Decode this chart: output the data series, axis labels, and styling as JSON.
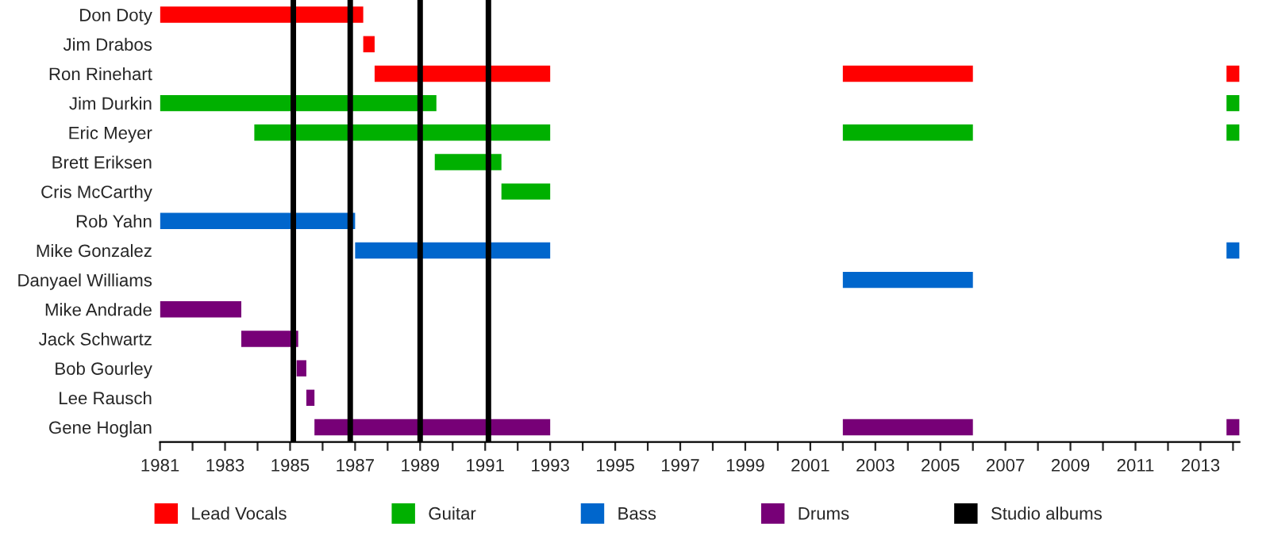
{
  "chart_data": {
    "type": "bar",
    "orientation": "horizontal",
    "categories": [
      "Don Doty",
      "Jim Drabos",
      "Ron Rinehart",
      "Jim Durkin",
      "Eric Meyer",
      "Brett Eriksen",
      "Cris McCarthy",
      "Rob Yahn",
      "Mike Gonzalez",
      "Danyael Williams",
      "Mike Andrade",
      "Jack Schwartz",
      "Bob Gourley",
      "Lee Rausch",
      "Gene Hoglan"
    ],
    "series": [
      {
        "name": "Lead Vocals",
        "color": "#ff0000",
        "base": [
          1981,
          1987.25,
          1987.6,
          null,
          null,
          null,
          null,
          null,
          null,
          null,
          null,
          null,
          null,
          null,
          null
        ],
        "values": [
          6.25,
          0.35,
          5.4,
          null,
          null,
          null,
          null,
          null,
          null,
          null,
          null,
          null,
          null,
          null,
          null
        ]
      },
      {
        "color": "#ff0000",
        "base": [
          null,
          null,
          2002,
          null,
          null,
          null,
          null,
          null,
          null,
          null,
          null,
          null,
          null,
          null,
          null
        ],
        "values": [
          null,
          null,
          4,
          null,
          null,
          null,
          null,
          null,
          null,
          null,
          null,
          null,
          null,
          null,
          null
        ]
      },
      {
        "color": "#ff0000",
        "base": [
          null,
          null,
          2013.8,
          null,
          null,
          null,
          null,
          null,
          null,
          null,
          null,
          null,
          null,
          null,
          null
        ],
        "values": [
          null,
          null,
          0.4,
          null,
          null,
          null,
          null,
          null,
          null,
          null,
          null,
          null,
          null,
          null,
          null
        ]
      },
      {
        "name": "Guitar",
        "color": "#00b000",
        "base": [
          null,
          null,
          null,
          1981,
          1983.9,
          1989.45,
          1991.5,
          null,
          null,
          null,
          null,
          null,
          null,
          null,
          null
        ],
        "values": [
          null,
          null,
          null,
          8.5,
          9.1,
          2.05,
          1.5,
          null,
          null,
          null,
          null,
          null,
          null,
          null,
          null
        ]
      },
      {
        "color": "#00b000",
        "base": [
          null,
          null,
          null,
          null,
          2002,
          null,
          null,
          null,
          null,
          null,
          null,
          null,
          null,
          null,
          null
        ],
        "values": [
          null,
          null,
          null,
          null,
          4,
          null,
          null,
          null,
          null,
          null,
          null,
          null,
          null,
          null,
          null
        ]
      },
      {
        "color": "#00b000",
        "base": [
          null,
          null,
          null,
          2013.8,
          2013.8,
          null,
          null,
          null,
          null,
          null,
          null,
          null,
          null,
          null,
          null
        ],
        "values": [
          null,
          null,
          null,
          0.4,
          0.4,
          null,
          null,
          null,
          null,
          null,
          null,
          null,
          null,
          null,
          null
        ]
      },
      {
        "name": "Bass",
        "color": "#0066cc",
        "base": [
          null,
          null,
          null,
          null,
          null,
          null,
          null,
          1981,
          1987,
          2002,
          null,
          null,
          null,
          null,
          null
        ],
        "values": [
          null,
          null,
          null,
          null,
          null,
          null,
          null,
          6,
          6,
          4,
          null,
          null,
          null,
          null,
          null
        ]
      },
      {
        "color": "#0066cc",
        "base": [
          null,
          null,
          null,
          null,
          null,
          null,
          null,
          null,
          2013.8,
          null,
          null,
          null,
          null,
          null,
          null
        ],
        "values": [
          null,
          null,
          null,
          null,
          null,
          null,
          null,
          null,
          0.4,
          null,
          null,
          null,
          null,
          null,
          null
        ]
      },
      {
        "name": "Drums",
        "color": "#770077",
        "base": [
          null,
          null,
          null,
          null,
          null,
          null,
          null,
          null,
          null,
          null,
          1981,
          1983.5,
          1985.2,
          1985.5,
          1985.75
        ],
        "values": [
          null,
          null,
          null,
          null,
          null,
          null,
          null,
          null,
          null,
          null,
          2.5,
          1.75,
          0.3,
          0.25,
          7.25
        ]
      },
      {
        "color": "#770077",
        "base": [
          null,
          null,
          null,
          null,
          null,
          null,
          null,
          null,
          null,
          null,
          null,
          null,
          null,
          null,
          2002
        ],
        "values": [
          null,
          null,
          null,
          null,
          null,
          null,
          null,
          null,
          null,
          null,
          null,
          null,
          null,
          null,
          4
        ]
      },
      {
        "color": "#770077",
        "base": [
          null,
          null,
          null,
          null,
          null,
          null,
          null,
          null,
          null,
          null,
          null,
          null,
          null,
          null,
          2013.8
        ],
        "values": [
          null,
          null,
          null,
          null,
          null,
          null,
          null,
          null,
          null,
          null,
          null,
          null,
          null,
          null,
          0.4
        ]
      }
    ],
    "ref_lines": [
      {
        "axis": "x",
        "value": 1985.1,
        "label": "Studio albums",
        "color": "#000000"
      },
      {
        "axis": "x",
        "value": 1986.85,
        "color": "#000000"
      },
      {
        "axis": "x",
        "value": 1989.0,
        "color": "#000000"
      },
      {
        "axis": "x",
        "value": 1991.1,
        "color": "#000000"
      }
    ],
    "xlim": [
      1981,
      2014.2
    ],
    "xticks": [
      1981,
      {
        "value": 1982,
        "label": null
      },
      1983,
      {
        "value": 1984,
        "label": null
      },
      1985,
      {
        "value": 1986,
        "label": null
      },
      1987,
      {
        "value": 1988,
        "label": null
      },
      1989,
      {
        "value": 1990,
        "label": null
      },
      1991,
      {
        "value": 1992,
        "label": null
      },
      1993,
      {
        "value": 1994,
        "label": null
      },
      1995,
      {
        "value": 1996,
        "label": null
      },
      1997,
      {
        "value": 1998,
        "label": null
      },
      1999,
      {
        "value": 2000,
        "label": null
      },
      2001,
      {
        "value": 2002,
        "label": null
      },
      2003,
      {
        "value": 2004,
        "label": null
      },
      2005,
      {
        "value": 2006,
        "label": null
      },
      2007,
      {
        "value": 2008,
        "label": null
      },
      2009,
      {
        "value": 2010,
        "label": null
      },
      2011,
      {
        "value": 2012,
        "label": null
      },
      2013,
      {
        "value": 2014,
        "label": null
      }
    ],
    "grid": false,
    "legend": "bottom"
  }
}
